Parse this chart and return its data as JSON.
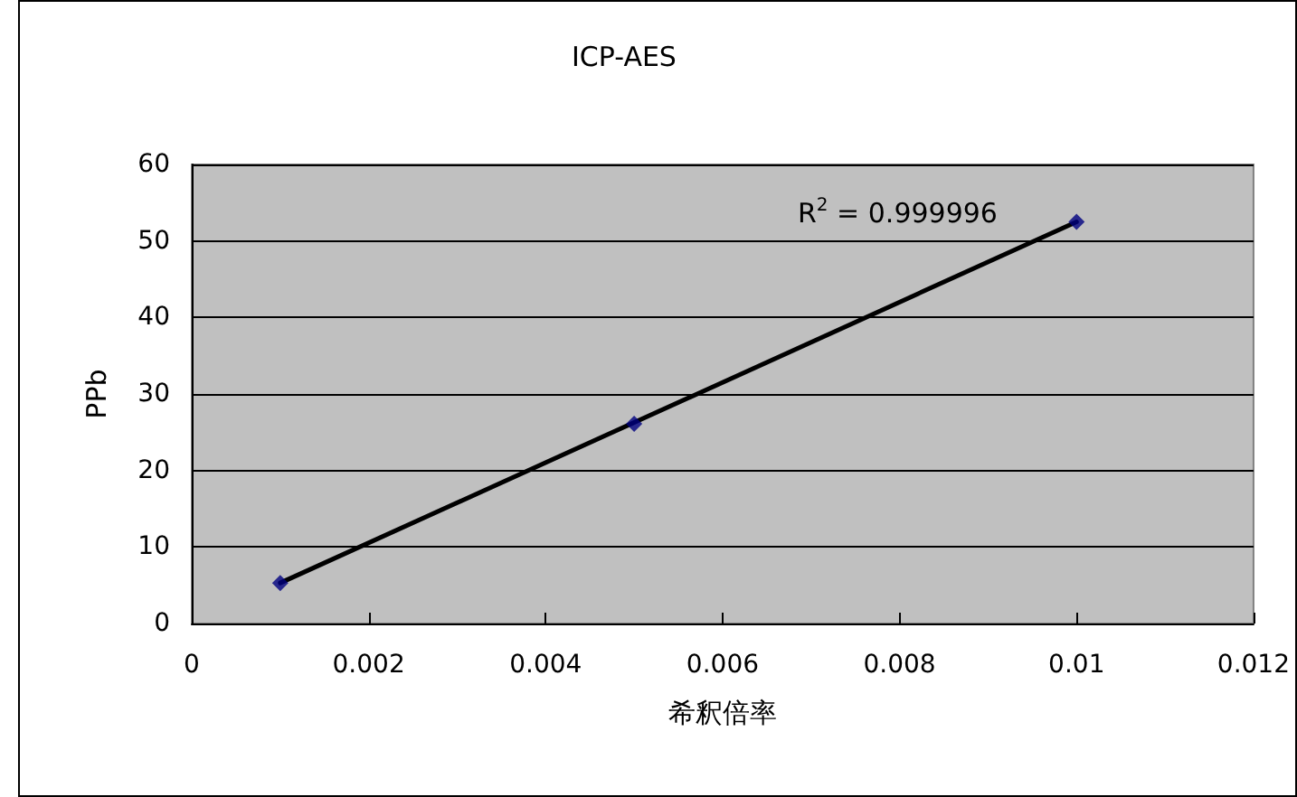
{
  "chart_data": {
    "type": "scatter",
    "title": "ICP-AES",
    "xlabel": "希釈倍率",
    "ylabel": "PPb",
    "series": [
      {
        "color": "#000080",
        "x": [
          0.001,
          0.005,
          0.01
        ],
        "values": [
          5.3,
          26.1,
          52.5
        ],
        "marker": "diamond"
      },
      {
        "type": "line",
        "color": "#000000",
        "x": [
          0.001,
          0.01
        ],
        "values": [
          5.3,
          52.5
        ],
        "marker": "none",
        "line_style": "solid"
      }
    ],
    "annotations": [
      "R$^{2}$ = 0.999996"
    ],
    "xlim": [
      0,
      0.012
    ],
    "xticks": [
      0,
      0.002,
      0.004,
      0.006,
      0.008,
      0.01,
      0.012
    ],
    "ylim": [
      0,
      60
    ],
    "yticks": [
      0,
      10,
      20,
      30,
      40,
      50,
      60
    ],
    "grid": "y"
  }
}
